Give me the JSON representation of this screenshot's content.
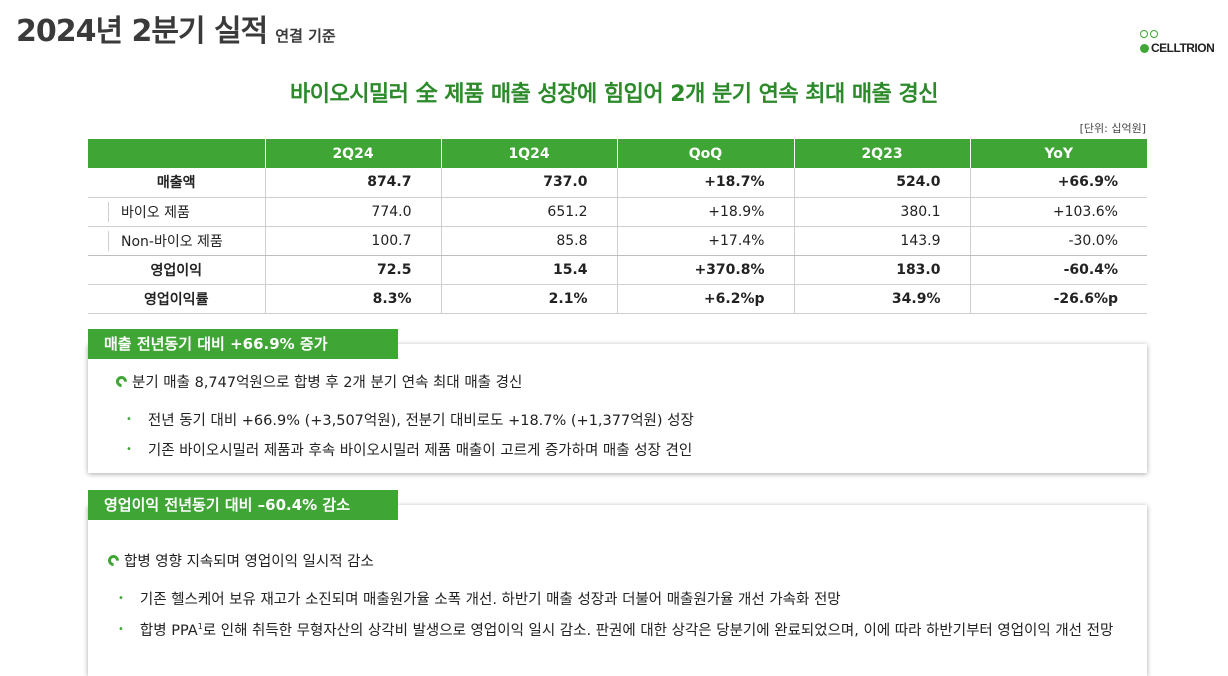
{
  "header": {
    "title": "2024년 2분기 실적",
    "subtitle": "연결 기준",
    "logo_text": "CELLTRION"
  },
  "headline": "바이오시밀러 全 제품 매출 성장에 힘입어 2개 분기 연속 최대 매출 경신",
  "unit": "[단위: 십억원]",
  "table": {
    "columns": [
      "",
      "2Q24",
      "1Q24",
      "QoQ",
      "2Q23",
      "YoY"
    ],
    "rows": [
      {
        "label": "매출액",
        "values": [
          "874.7",
          "737.0",
          "+18.7%",
          "524.0",
          "+66.9%"
        ]
      },
      {
        "label": "바이오 제품",
        "values": [
          "774.0",
          "651.2",
          "+18.9%",
          "380.1",
          "+103.6%"
        ]
      },
      {
        "label": "Non-바이오 제품",
        "values": [
          "100.7",
          "85.8",
          "+17.4%",
          "143.9",
          "-30.0%"
        ]
      },
      {
        "label": "영업이익",
        "values": [
          "72.5",
          "15.4",
          "+370.8%",
          "183.0",
          "-60.4%"
        ]
      },
      {
        "label": "영업이익률",
        "values": [
          "8.3%",
          "2.1%",
          "+6.2%p",
          "34.9%",
          "-26.6%p"
        ]
      }
    ]
  },
  "section1": {
    "tag": "매출 전년동기 대비 +66.9% 증가",
    "lead": "분기 매출 8,747억원으로 합병 후 2개 분기 연속 최대 매출 경신",
    "bullets": [
      "전년 동기 대비 +66.9% (+3,507억원), 전분기 대비로도 +18.7% (+1,377억원) 성장",
      "기존 바이오시밀러 제품과 후속 바이오시밀러 제품 매출이 고르게 증가하며 매출 성장 견인"
    ]
  },
  "section2": {
    "tag": "영업이익 전년동기 대비 –60.4% 감소",
    "lead": "합병 영향 지속되며 영업이익 일시적 감소",
    "bullet1": "기존 헬스케어 보유 재고가 소진되며 매출원가율 소폭 개선. 하반기 매출 성장과 더불어 매출원가율 개선 가속화 전망",
    "bullet2_pre": "합병 PPA",
    "bullet2_sup": "1",
    "bullet2_post": "로 인해 취득한 무형자산의 상각비 발생으로 영업이익 일시 감소. 판권에 대한 상각은 당분기에 완료되었으며, 이에 따라 하반기부터 영업이익 개선 전망"
  },
  "colors": {
    "accent": "#3fa535",
    "headline": "#2c8a2a"
  }
}
